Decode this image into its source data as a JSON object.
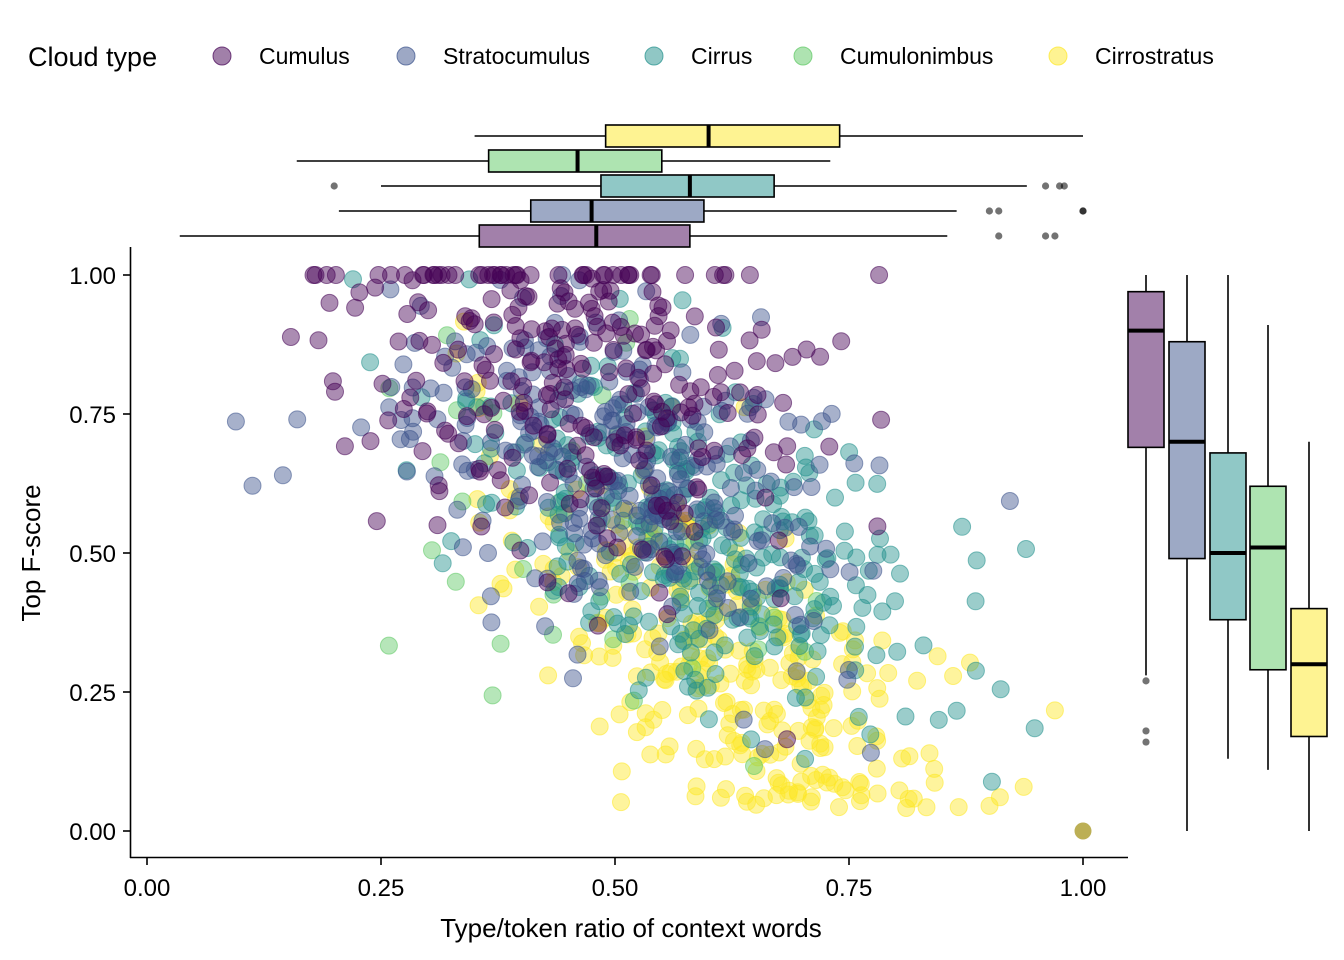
{
  "chart_data": {
    "type": "scatter",
    "xlabel": "Type/token ratio of context words",
    "ylabel": "Top F-score",
    "xlim": [
      0,
      1
    ],
    "ylim": [
      0,
      1
    ],
    "x_ticks": [
      "0.00",
      "0.25",
      "0.50",
      "0.75",
      "1.00"
    ],
    "y_ticks": [
      "0.00",
      "0.25",
      "0.50",
      "0.75",
      "1.00"
    ],
    "grid": false,
    "legend": {
      "title": "Cloud type",
      "placement": "top",
      "entries": [
        "Cumulus",
        "Stratocumulus",
        "Cirrus",
        "Cumulonimbus",
        "Cirrostratus"
      ]
    },
    "series": [
      {
        "name": "Cumulus",
        "color": "#440154",
        "n_points": 280,
        "x_center": 0.46,
        "y_center": 0.82
      },
      {
        "name": "Stratocumulus",
        "color": "#3B528B",
        "n_points": 300,
        "x_center": 0.5,
        "y_center": 0.66
      },
      {
        "name": "Cirrus",
        "color": "#21908C",
        "n_points": 320,
        "x_center": 0.58,
        "y_center": 0.53
      },
      {
        "name": "Cumulonimbus",
        "color": "#5DC863",
        "n_points": 40,
        "x_center": 0.46,
        "y_center": 0.5
      },
      {
        "name": "Cirrostratus",
        "color": "#FDE725",
        "n_points": 300,
        "x_center": 0.62,
        "y_center": 0.3
      }
    ],
    "marginal_x_boxplots": [
      {
        "name": "Cumulus",
        "min": 0.035,
        "q1": 0.355,
        "median": 0.48,
        "q3": 0.58,
        "max": 0.855,
        "outliers": [
          0.91,
          0.96,
          0.97
        ]
      },
      {
        "name": "Stratocumulus",
        "min": 0.205,
        "q1": 0.41,
        "median": 0.475,
        "q3": 0.595,
        "max": 0.865,
        "outliers": [
          0.9,
          0.91,
          1.0,
          1.0
        ]
      },
      {
        "name": "Cirrus",
        "min": 0.25,
        "q1": 0.485,
        "median": 0.58,
        "q3": 0.67,
        "max": 0.94,
        "outliers": [
          0.2,
          0.96,
          0.975,
          0.98
        ]
      },
      {
        "name": "Cumulonimbus",
        "min": 0.16,
        "q1": 0.365,
        "median": 0.46,
        "q3": 0.55,
        "max": 0.73,
        "outliers": []
      },
      {
        "name": "Cirrostratus",
        "min": 0.35,
        "q1": 0.49,
        "median": 0.6,
        "q3": 0.74,
        "max": 1.0,
        "outliers": []
      }
    ],
    "marginal_y_boxplots": [
      {
        "name": "Cumulus",
        "min": 0.28,
        "q1": 0.69,
        "median": 0.9,
        "q3": 0.97,
        "max": 1.0,
        "outliers": [
          0.27,
          0.18,
          0.16
        ]
      },
      {
        "name": "Stratocumulus",
        "min": 0.0,
        "q1": 0.49,
        "median": 0.7,
        "q3": 0.88,
        "max": 1.0,
        "outliers": []
      },
      {
        "name": "Cirrus",
        "min": 0.13,
        "q1": 0.38,
        "median": 0.5,
        "q3": 0.68,
        "max": 1.0,
        "outliers": []
      },
      {
        "name": "Cumulonimbus",
        "min": 0.11,
        "q1": 0.29,
        "median": 0.51,
        "q3": 0.62,
        "max": 0.91,
        "outliers": []
      },
      {
        "name": "Cirrostratus",
        "min": 0.0,
        "q1": 0.17,
        "median": 0.3,
        "q3": 0.4,
        "max": 0.7,
        "outliers": []
      }
    ]
  }
}
